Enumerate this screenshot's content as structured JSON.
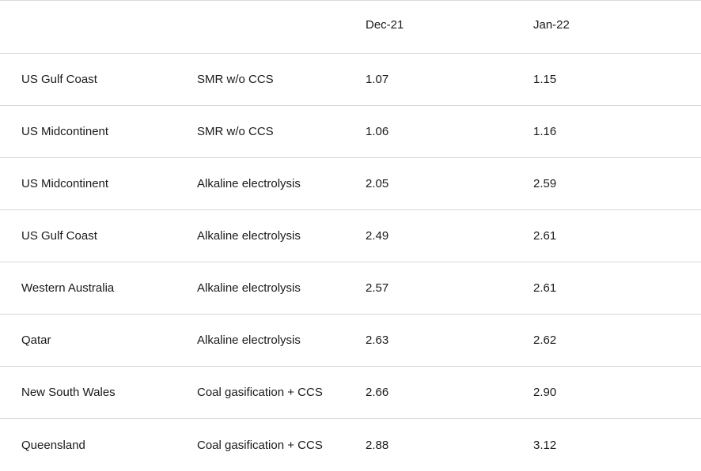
{
  "table": {
    "headers": [
      "",
      "",
      "Dec-21",
      "Jan-22"
    ],
    "rows": [
      {
        "region": "US Gulf Coast",
        "process": "SMR w/o CCS",
        "dec21": "1.07",
        "jan22": "1.15"
      },
      {
        "region": "US Midcontinent",
        "process": "SMR w/o CCS",
        "dec21": "1.06",
        "jan22": "1.16"
      },
      {
        "region": "US Midcontinent",
        "process": "Alkaline electrolysis",
        "dec21": "2.05",
        "jan22": "2.59"
      },
      {
        "region": "US Gulf Coast",
        "process": "Alkaline electrolysis",
        "dec21": "2.49",
        "jan22": "2.61"
      },
      {
        "region": "Western Australia",
        "process": "Alkaline electrolysis",
        "dec21": "2.57",
        "jan22": "2.61"
      },
      {
        "region": "Qatar",
        "process": "Alkaline electrolysis",
        "dec21": "2.63",
        "jan22": "2.62"
      },
      {
        "region": "New South Wales",
        "process": "Coal gasification + CCS",
        "dec21": "2.66",
        "jan22": "2.90"
      },
      {
        "region": "Queensland",
        "process": "Coal gasification + CCS",
        "dec21": "2.88",
        "jan22": "3.12"
      }
    ]
  }
}
